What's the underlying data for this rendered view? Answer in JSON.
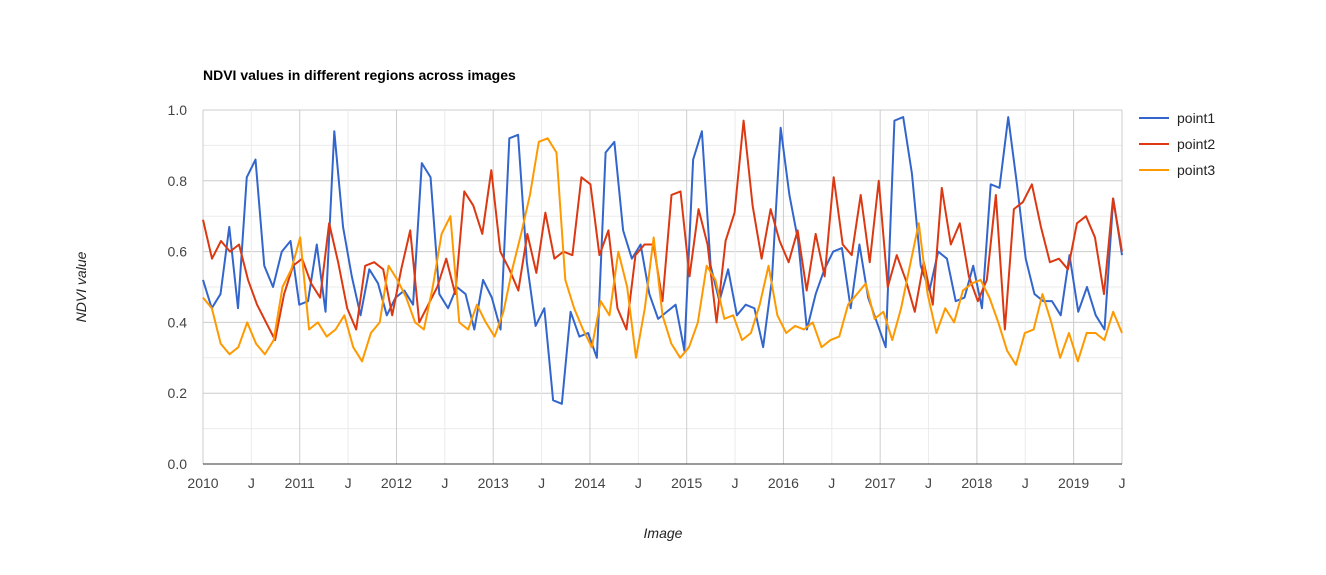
{
  "chart_data": {
    "type": "line",
    "title": "NDVI values in different regions across images",
    "xlabel": "Image",
    "ylabel": "NDVI value",
    "xlim": [
      0,
      114
    ],
    "ylim": [
      0,
      1
    ],
    "yticks": [
      "0.0",
      "0.2",
      "0.4",
      "0.6",
      "0.8",
      "1.0"
    ],
    "xticks": [
      {
        "label": "2010",
        "x": 0
      },
      {
        "label": "J",
        "x": 6
      },
      {
        "label": "2011",
        "x": 12
      },
      {
        "label": "J",
        "x": 18
      },
      {
        "label": "2012",
        "x": 24
      },
      {
        "label": "J",
        "x": 30
      },
      {
        "label": "2013",
        "x": 36
      },
      {
        "label": "J",
        "x": 42
      },
      {
        "label": "2014",
        "x": 48
      },
      {
        "label": "J",
        "x": 54
      },
      {
        "label": "2015",
        "x": 60
      },
      {
        "label": "J",
        "x": 66
      },
      {
        "label": "2016",
        "x": 72
      },
      {
        "label": "J",
        "x": 78
      },
      {
        "label": "2017",
        "x": 84
      },
      {
        "label": "J",
        "x": 90
      },
      {
        "label": "2018",
        "x": 96
      },
      {
        "label": "J",
        "x": 102
      },
      {
        "label": "2019",
        "x": 108
      },
      {
        "label": "J",
        "x": 114
      }
    ],
    "grid": true,
    "legend_position": "right",
    "series": [
      {
        "name": "point1",
        "color": "#3366cc",
        "values": [
          0.52,
          0.44,
          0.48,
          0.67,
          0.44,
          0.81,
          0.86,
          0.56,
          0.5,
          0.6,
          0.63,
          0.45,
          0.46,
          0.62,
          0.43,
          0.94,
          0.67,
          0.53,
          0.42,
          0.55,
          0.51,
          0.42,
          0.47,
          0.49,
          0.45,
          0.85,
          0.81,
          0.48,
          0.44,
          0.5,
          0.48,
          0.38,
          0.52,
          0.47,
          0.38,
          0.92,
          0.93,
          0.57,
          0.39,
          0.44,
          0.18,
          0.17,
          0.43,
          0.36,
          0.37,
          0.3,
          0.88,
          0.91,
          0.66,
          0.58,
          0.62,
          0.48,
          0.41,
          0.43,
          0.45,
          0.32,
          0.86,
          0.94,
          0.56,
          0.46,
          0.55,
          0.42,
          0.45,
          0.44,
          0.33,
          0.52,
          0.95,
          0.76,
          0.63,
          0.38,
          0.48,
          0.55,
          0.6,
          0.61,
          0.44,
          0.62,
          0.47,
          0.4,
          0.33,
          0.97,
          0.98,
          0.82,
          0.56,
          0.49,
          0.6,
          0.58,
          0.46,
          0.47,
          0.56,
          0.44,
          0.79,
          0.78,
          0.98,
          0.79,
          0.58,
          0.48,
          0.46,
          0.46,
          0.42,
          0.59,
          0.43,
          0.5,
          0.42,
          0.38,
          0.75,
          0.59
        ]
      },
      {
        "name": "point2",
        "color": "#dc3912",
        "values": [
          0.69,
          0.58,
          0.63,
          0.6,
          0.62,
          0.52,
          0.45,
          0.4,
          0.35,
          0.48,
          0.56,
          0.58,
          0.51,
          0.47,
          0.68,
          0.57,
          0.44,
          0.38,
          0.56,
          0.57,
          0.55,
          0.42,
          0.55,
          0.66,
          0.4,
          0.45,
          0.5,
          0.58,
          0.48,
          0.77,
          0.73,
          0.65,
          0.83,
          0.6,
          0.55,
          0.49,
          0.65,
          0.54,
          0.71,
          0.58,
          0.6,
          0.59,
          0.81,
          0.79,
          0.59,
          0.66,
          0.44,
          0.38,
          0.59,
          0.62,
          0.62,
          0.46,
          0.76,
          0.77,
          0.53,
          0.72,
          0.62,
          0.4,
          0.63,
          0.71,
          0.97,
          0.73,
          0.58,
          0.72,
          0.63,
          0.57,
          0.66,
          0.49,
          0.65,
          0.53,
          0.81,
          0.62,
          0.59,
          0.76,
          0.57,
          0.8,
          0.5,
          0.59,
          0.52,
          0.43,
          0.57,
          0.45,
          0.78,
          0.62,
          0.68,
          0.53,
          0.46,
          0.52,
          0.76,
          0.38,
          0.72,
          0.74,
          0.79,
          0.67,
          0.57,
          0.58,
          0.55,
          0.68,
          0.7,
          0.64,
          0.48,
          0.75,
          0.6
        ]
      },
      {
        "name": "point3",
        "color": "#ff9900",
        "values": [
          0.47,
          0.44,
          0.34,
          0.31,
          0.33,
          0.4,
          0.34,
          0.31,
          0.35,
          0.5,
          0.55,
          0.64,
          0.38,
          0.4,
          0.36,
          0.38,
          0.42,
          0.33,
          0.29,
          0.37,
          0.4,
          0.56,
          0.52,
          0.47,
          0.4,
          0.38,
          0.5,
          0.65,
          0.7,
          0.4,
          0.38,
          0.45,
          0.4,
          0.36,
          0.43,
          0.55,
          0.65,
          0.76,
          0.91,
          0.92,
          0.88,
          0.52,
          0.44,
          0.38,
          0.33,
          0.46,
          0.42,
          0.6,
          0.5,
          0.3,
          0.44,
          0.64,
          0.42,
          0.34,
          0.3,
          0.33,
          0.4,
          0.56,
          0.52,
          0.41,
          0.42,
          0.35,
          0.37,
          0.45,
          0.56,
          0.42,
          0.37,
          0.39,
          0.38,
          0.4,
          0.33,
          0.35,
          0.36,
          0.45,
          0.48,
          0.51,
          0.41,
          0.43,
          0.35,
          0.44,
          0.56,
          0.68,
          0.48,
          0.37,
          0.44,
          0.4,
          0.49,
          0.51,
          0.52,
          0.47,
          0.4,
          0.32,
          0.28,
          0.37,
          0.38,
          0.48,
          0.4,
          0.3,
          0.37,
          0.29,
          0.37,
          0.37,
          0.35,
          0.43,
          0.37
        ]
      }
    ]
  }
}
